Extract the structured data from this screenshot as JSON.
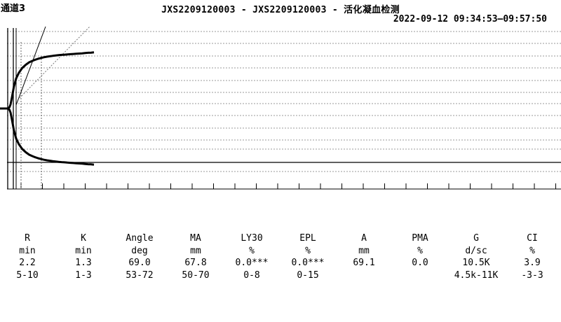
{
  "header": {
    "channel": "通道3",
    "title": "JXS2209120003 - JXS2209120003 - 活化凝血检测",
    "datetime": "2022-09-12 09:34:53—09:57:50"
  },
  "chart_data": {
    "type": "line",
    "grid": true,
    "series": [
      {
        "x": [
          0,
          0.75,
          1.3,
          1.7,
          2.2,
          2.8,
          3.6,
          4.5,
          5.6,
          6.8,
          8,
          9,
          10,
          11,
          12,
          13,
          14,
          15,
          16,
          17,
          18,
          19,
          20,
          21,
          22,
          23,
          24,
          25,
          26,
          27,
          28,
          29,
          30
        ],
        "values": [
          0,
          0,
          1.5,
          5,
          14,
          26,
          36,
          42.5,
          48,
          52,
          55,
          56.6,
          58,
          59.2,
          60.2,
          61,
          61.7,
          62.2,
          62.7,
          63.1,
          63.5,
          63.8,
          64.1,
          64.4,
          64.7,
          64.9,
          65.2,
          65.4,
          65.7,
          66,
          66.3,
          66.5,
          66.8
        ]
      },
      {
        "x": [
          0,
          0.75,
          1.3,
          1.7,
          2.2,
          2.8,
          3.6,
          4.5,
          5.6,
          6.8,
          8,
          9,
          10,
          11,
          12,
          13,
          14,
          15,
          16,
          17,
          18,
          19,
          20,
          21,
          22,
          23,
          24,
          25,
          26,
          27,
          28,
          29,
          30
        ],
        "values": [
          0,
          0,
          -1.5,
          -5,
          -14,
          -26,
          -36,
          -42.5,
          -48,
          -52,
          -55,
          -56.6,
          -58,
          -59.2,
          -60.2,
          -61,
          -61.7,
          -62.2,
          -62.7,
          -63.1,
          -63.5,
          -63.8,
          -64.1,
          -64.4,
          -64.7,
          -64.9,
          -65.2,
          -65.4,
          -65.7,
          -66,
          -66.3,
          -66.5,
          -66.8
        ]
      }
    ],
    "ylim": [
      -70,
      100
    ],
    "xlim": [
      0,
      190
    ]
  },
  "table": {
    "columns": [
      {
        "name": "R",
        "unit": "min",
        "value": "2.2",
        "range": "5-10"
      },
      {
        "name": "K",
        "unit": "min",
        "value": "1.3",
        "range": "1-3"
      },
      {
        "name": "Angle",
        "unit": "deg",
        "value": "69.0",
        "range": "53-72"
      },
      {
        "name": "MA",
        "unit": "mm",
        "value": "67.8",
        "range": "50-70"
      },
      {
        "name": "LY30",
        "unit": "%",
        "value": "0.0***",
        "range": "0-8"
      },
      {
        "name": "EPL",
        "unit": "%",
        "value": "0.0***",
        "range": "0-15"
      },
      {
        "name": "A",
        "unit": "mm",
        "value": "69.1",
        "range": ""
      },
      {
        "name": "PMA",
        "unit": "%",
        "value": "0.0",
        "range": ""
      },
      {
        "name": "G",
        "unit": "d/sc",
        "value": "10.5K",
        "range": "4.5k-11K"
      },
      {
        "name": "CI",
        "unit": "%",
        "value": "3.9",
        "range": "-3-3"
      }
    ]
  }
}
